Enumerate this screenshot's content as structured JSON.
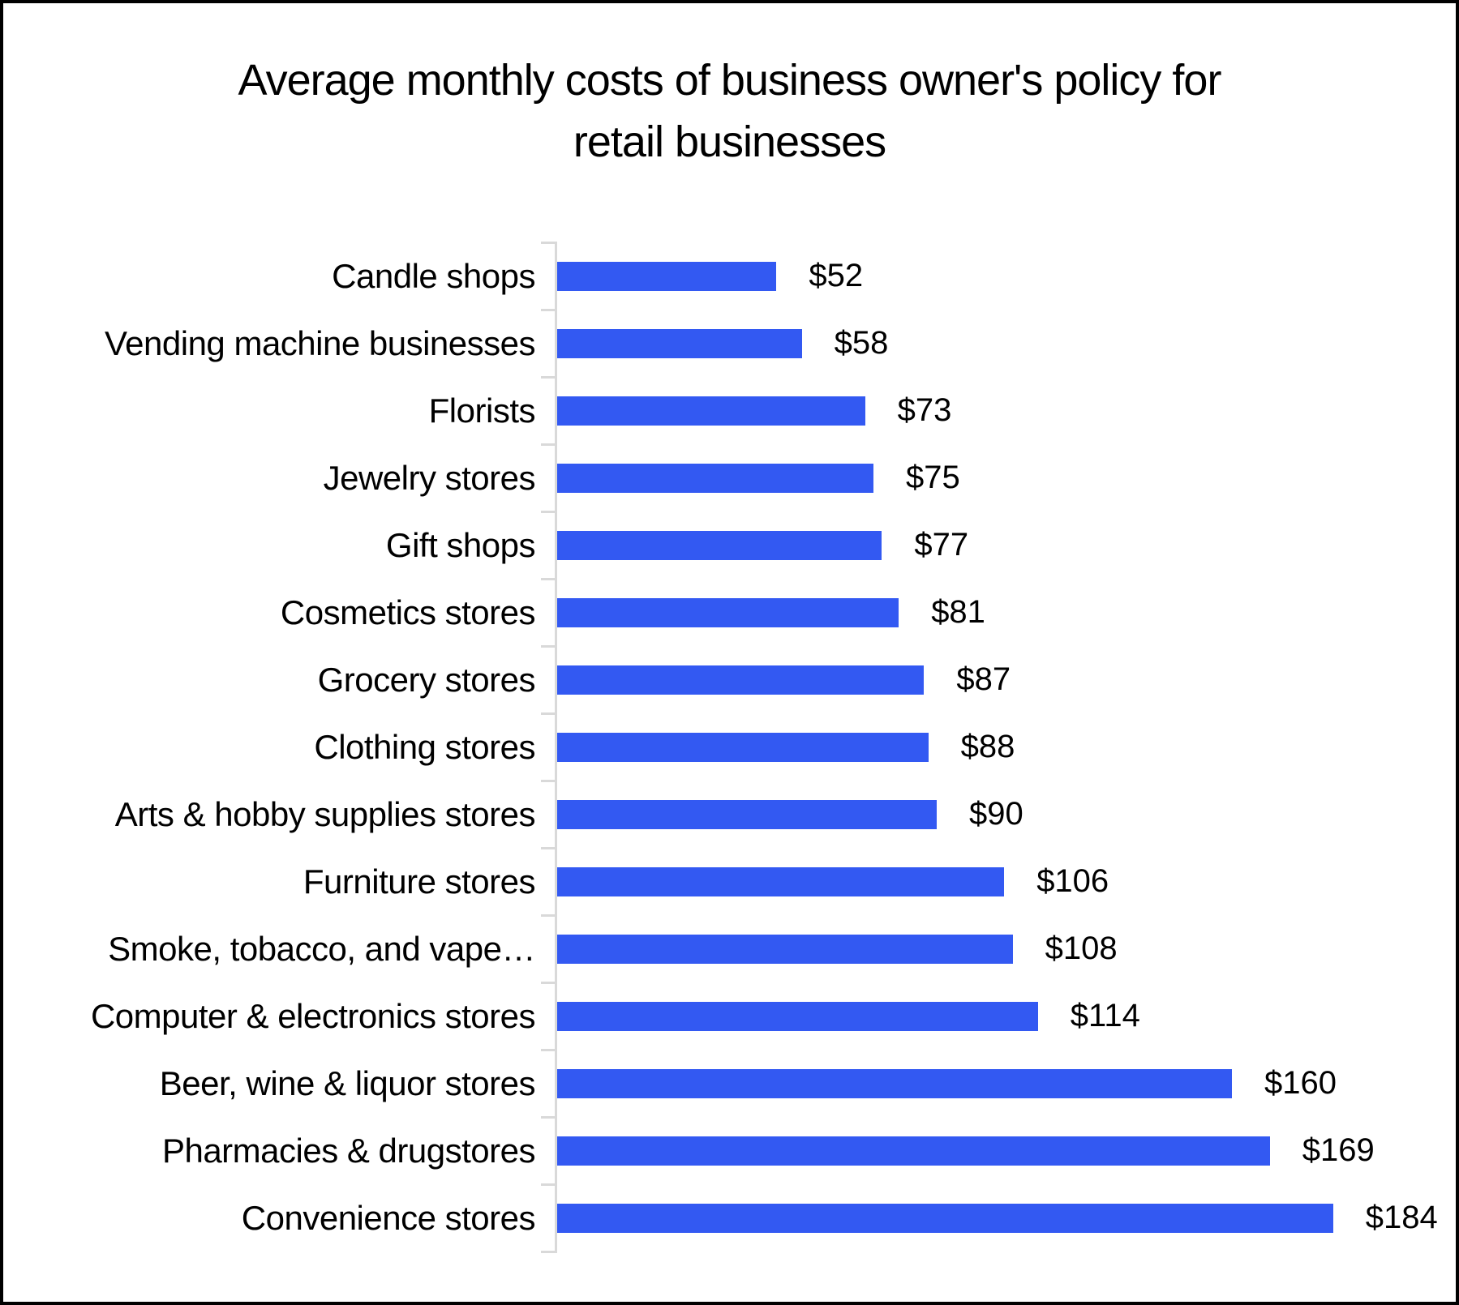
{
  "frame": {
    "background": "#ffffff",
    "border_color": "#000000"
  },
  "chart_data": {
    "type": "bar",
    "orientation": "horizontal",
    "title": "Average monthly costs of business owner's policy for retail businesses",
    "title_lines": [
      "Average monthly costs of business owner's policy for",
      "retail businesses"
    ],
    "categories": [
      "Candle shops",
      "Vending machine businesses",
      "Florists",
      "Jewelry stores",
      "Gift shops",
      "Cosmetics stores",
      "Grocery stores",
      "Clothing stores",
      "Arts & hobby supplies stores",
      "Furniture stores",
      "Smoke, tobacco, and vape…",
      "Computer & electronics stores",
      "Beer, wine & liquor stores",
      "Pharmacies & drugstores",
      "Convenience stores"
    ],
    "values": [
      52,
      58,
      73,
      75,
      77,
      81,
      87,
      88,
      90,
      106,
      108,
      114,
      160,
      169,
      184
    ],
    "value_labels": [
      "$52",
      "$58",
      "$73",
      "$75",
      "$77",
      "$81",
      "$87",
      "$88",
      "$90",
      "$106",
      "$108",
      "$114",
      "$160",
      "$169",
      "$184"
    ],
    "xlabel": "",
    "ylabel": "",
    "xlim": [
      0,
      200
    ],
    "grid": false,
    "legend": false,
    "data_labels": true,
    "bar_color": "#3359f2",
    "axis_color": "#d9d9d9",
    "text_color": "#000000"
  }
}
